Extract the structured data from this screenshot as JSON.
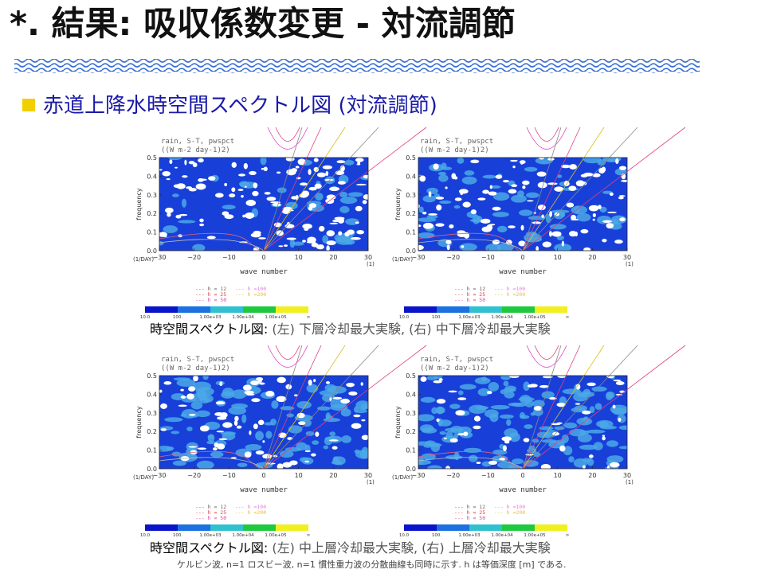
{
  "header": {
    "title": "*. 結果: 吸収係数変更 - 対流調節"
  },
  "section": {
    "heading": "赤道上降水時空間スペクトル図 (対流調節)"
  },
  "plot": {
    "title": "rain, S-T, pwspct",
    "units": "((W m-2 day-1)2)",
    "ylabel": "frequency",
    "yticks": [
      "0.0",
      "0.1",
      "0.2",
      "0.3",
      "0.4",
      "0.5"
    ],
    "yunit": "(1/DAY)",
    "xticks": [
      "−30",
      "−20",
      "−10",
      "0",
      "10",
      "20",
      "30"
    ],
    "xunit": "(1)",
    "xlabel": "wave number",
    "legend": [
      "--- h = 12",
      "--- h = 25",
      "--- h = 50",
      "--- h =100",
      "--- h =200"
    ],
    "colorbar": [
      "10.0",
      "100.",
      "1.00e+03",
      "1.00e+04",
      "1.00e+05",
      "∞"
    ]
  },
  "captions": [
    {
      "lead": "時空間スペクトル図:",
      "text": "(左) 下層冷却最大実験, (右) 中下層冷却最大実験"
    },
    {
      "lead": "時空間スペクトル図:",
      "text": "(左) 中上層冷却最大実験, (右) 上層冷却最大実験"
    }
  ],
  "footnote": "ケルビン波, n=1 ロスビー波, n=1 慣性重力波の分散曲線も同時に示す. h は等価深度 [m] である."
}
